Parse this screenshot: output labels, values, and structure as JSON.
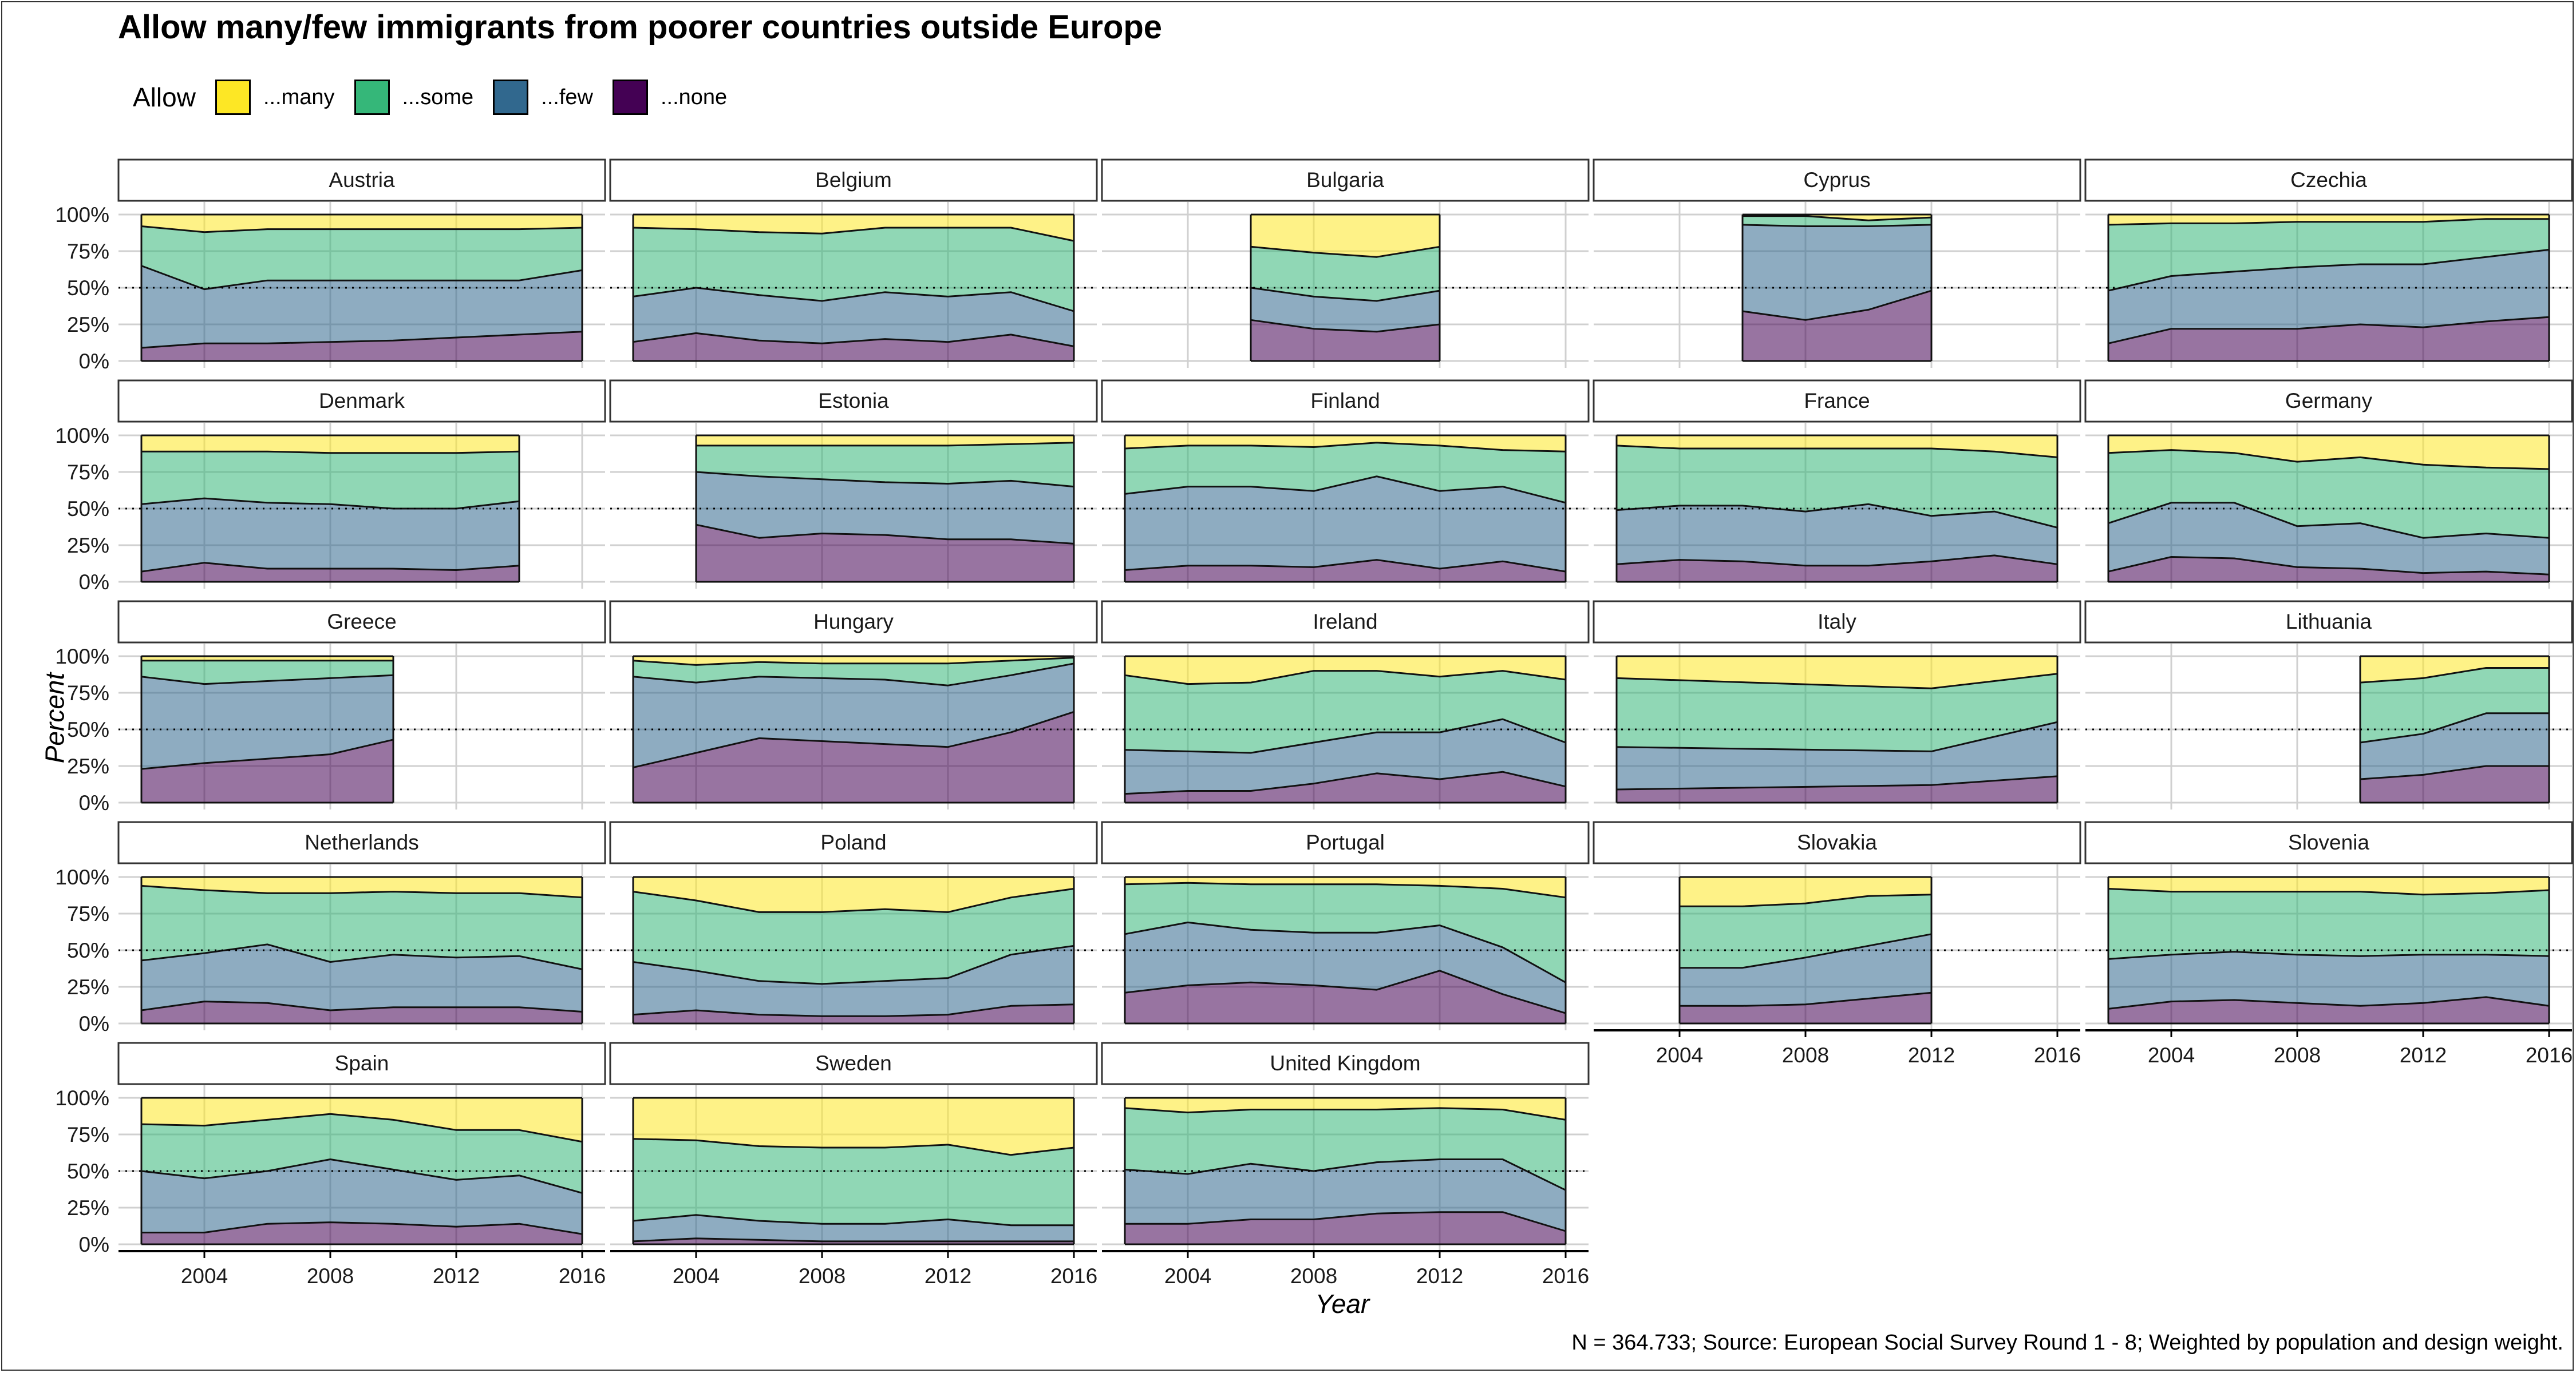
{
  "chart_data": {
    "type": "area",
    "stacked": true,
    "title": "Allow many/few immigrants from poorer countries outside Europe",
    "xlabel": "Year",
    "ylabel": "Percent",
    "xlim": [
      2002,
      2016
    ],
    "ylim": [
      0,
      100
    ],
    "x_ticks": [
      "2004",
      "2008",
      "2012",
      "2016"
    ],
    "y_ticks": [
      "0%",
      "25%",
      "50%",
      "75%",
      "100%"
    ],
    "reference_line": 50,
    "legend_position": "top-left",
    "legend": {
      "title": "Allow",
      "items": [
        {
          "label": "...many",
          "color": "#FDE725"
        },
        {
          "label": "...some",
          "color": "#35B779"
        },
        {
          "label": "...few",
          "color": "#31688E"
        },
        {
          "label": "...none",
          "color": "#440154"
        }
      ]
    },
    "caption": "N = 364.733; Source: European Social Survey Round 1 - 8; Weighted by population and design weight.",
    "panels": [
      {
        "name": "Austria",
        "x": [
          2002,
          2004,
          2006,
          2008,
          2010,
          2012,
          2014,
          2016
        ],
        "none": [
          9,
          12,
          12,
          13,
          14,
          16,
          18,
          20
        ],
        "few": [
          65,
          49,
          55,
          55,
          55,
          55,
          55,
          62
        ],
        "some": [
          92,
          88,
          90,
          90,
          90,
          90,
          90,
          91
        ]
      },
      {
        "name": "Belgium",
        "x": [
          2002,
          2004,
          2006,
          2008,
          2010,
          2012,
          2014,
          2016
        ],
        "none": [
          13,
          19,
          14,
          12,
          15,
          13,
          18,
          10
        ],
        "few": [
          44,
          50,
          45,
          41,
          47,
          44,
          47,
          34
        ],
        "some": [
          91,
          90,
          88,
          87,
          91,
          91,
          91,
          82
        ]
      },
      {
        "name": "Bulgaria",
        "x": [
          2006,
          2008,
          2010,
          2012
        ],
        "none": [
          28,
          22,
          20,
          25
        ],
        "few": [
          50,
          44,
          41,
          48
        ],
        "some": [
          78,
          74,
          71,
          78
        ]
      },
      {
        "name": "Cyprus",
        "x": [
          2006,
          2008,
          2010,
          2012
        ],
        "none": [
          34,
          28,
          35,
          48
        ],
        "few": [
          93,
          92,
          92,
          93
        ],
        "some": [
          99,
          99,
          96,
          98
        ]
      },
      {
        "name": "Czechia",
        "x": [
          2002,
          2004,
          2006,
          2008,
          2010,
          2012,
          2014,
          2016
        ],
        "none": [
          12,
          22,
          22,
          22,
          25,
          23,
          27,
          30
        ],
        "few": [
          48,
          58,
          61,
          64,
          66,
          66,
          71,
          76
        ],
        "some": [
          93,
          94,
          94,
          95,
          95,
          95,
          97,
          97
        ]
      },
      {
        "name": "Denmark",
        "x": [
          2002,
          2004,
          2006,
          2008,
          2010,
          2012,
          2014
        ],
        "none": [
          7,
          13,
          9,
          9,
          9,
          8,
          11
        ],
        "few": [
          53,
          57,
          54,
          53,
          50,
          50,
          55
        ],
        "some": [
          89,
          89,
          89,
          88,
          88,
          88,
          89
        ]
      },
      {
        "name": "Estonia",
        "x": [
          2004,
          2006,
          2008,
          2010,
          2012,
          2014,
          2016
        ],
        "none": [
          39,
          30,
          33,
          32,
          29,
          29,
          26
        ],
        "few": [
          75,
          72,
          70,
          68,
          67,
          69,
          65
        ],
        "some": [
          93,
          93,
          93,
          93,
          93,
          94,
          95
        ]
      },
      {
        "name": "Finland",
        "x": [
          2002,
          2004,
          2006,
          2008,
          2010,
          2012,
          2014,
          2016
        ],
        "none": [
          8,
          11,
          11,
          10,
          15,
          9,
          14,
          7
        ],
        "few": [
          60,
          65,
          65,
          62,
          72,
          62,
          65,
          54
        ],
        "some": [
          91,
          93,
          93,
          92,
          95,
          93,
          90,
          89
        ]
      },
      {
        "name": "France",
        "x": [
          2002,
          2004,
          2006,
          2008,
          2010,
          2012,
          2014,
          2016
        ],
        "none": [
          12,
          15,
          14,
          11,
          11,
          14,
          18,
          12
        ],
        "few": [
          49,
          52,
          52,
          48,
          53,
          45,
          48,
          37
        ],
        "some": [
          93,
          91,
          91,
          91,
          91,
          91,
          89,
          85
        ]
      },
      {
        "name": "Germany",
        "x": [
          2002,
          2004,
          2006,
          2008,
          2010,
          2012,
          2014,
          2016
        ],
        "none": [
          7,
          17,
          16,
          10,
          9,
          6,
          7,
          5
        ],
        "few": [
          40,
          54,
          54,
          38,
          40,
          30,
          33,
          30
        ],
        "some": [
          88,
          90,
          88,
          82,
          85,
          80,
          78,
          77
        ]
      },
      {
        "name": "Greece",
        "x": [
          2002,
          2004,
          2006,
          2008,
          2010
        ],
        "none": [
          23,
          27,
          30,
          33,
          43
        ],
        "few": [
          86,
          81,
          83,
          85,
          87
        ],
        "some": [
          97,
          97,
          97,
          97,
          97
        ]
      },
      {
        "name": "Hungary",
        "x": [
          2002,
          2004,
          2006,
          2008,
          2010,
          2012,
          2014,
          2016
        ],
        "none": [
          24,
          34,
          44,
          42,
          40,
          38,
          48,
          62
        ],
        "few": [
          86,
          82,
          86,
          85,
          84,
          80,
          87,
          95
        ],
        "some": [
          97,
          94,
          96,
          95,
          95,
          95,
          97,
          99
        ]
      },
      {
        "name": "Ireland",
        "x": [
          2002,
          2004,
          2006,
          2008,
          2010,
          2012,
          2014,
          2016
        ],
        "none": [
          6,
          8,
          8,
          13,
          20,
          16,
          21,
          11
        ],
        "few": [
          36,
          35,
          34,
          41,
          48,
          48,
          57,
          41
        ],
        "some": [
          87,
          81,
          82,
          90,
          90,
          86,
          90,
          84
        ]
      },
      {
        "name": "Italy",
        "x": [
          2002,
          2012,
          2016
        ],
        "none": [
          9,
          12,
          18
        ],
        "few": [
          38,
          35,
          55
        ],
        "some": [
          85,
          78,
          88
        ]
      },
      {
        "name": "Lithuania",
        "x": [
          2010,
          2012,
          2014,
          2016
        ],
        "none": [
          16,
          19,
          25,
          25
        ],
        "few": [
          41,
          47,
          61,
          61
        ],
        "some": [
          82,
          85,
          92,
          92
        ]
      },
      {
        "name": "Netherlands",
        "x": [
          2002,
          2004,
          2006,
          2008,
          2010,
          2012,
          2014,
          2016
        ],
        "none": [
          9,
          15,
          14,
          9,
          11,
          11,
          11,
          8
        ],
        "few": [
          43,
          48,
          54,
          42,
          47,
          45,
          46,
          37
        ],
        "some": [
          94,
          91,
          89,
          89,
          90,
          89,
          89,
          86
        ]
      },
      {
        "name": "Poland",
        "x": [
          2002,
          2004,
          2006,
          2008,
          2010,
          2012,
          2014,
          2016
        ],
        "none": [
          6,
          9,
          6,
          5,
          5,
          6,
          12,
          13
        ],
        "few": [
          42,
          36,
          29,
          27,
          29,
          31,
          47,
          53
        ],
        "some": [
          90,
          84,
          76,
          76,
          78,
          76,
          86,
          92
        ]
      },
      {
        "name": "Portugal",
        "x": [
          2002,
          2004,
          2006,
          2008,
          2010,
          2012,
          2014,
          2016
        ],
        "none": [
          21,
          26,
          28,
          26,
          23,
          36,
          20,
          7
        ],
        "few": [
          61,
          69,
          64,
          62,
          62,
          67,
          52,
          28
        ],
        "some": [
          95,
          96,
          95,
          95,
          95,
          94,
          92,
          86
        ]
      },
      {
        "name": "Slovakia",
        "x": [
          2004,
          2006,
          2008,
          2010,
          2012
        ],
        "none": [
          12,
          12,
          13,
          17,
          21
        ],
        "few": [
          38,
          38,
          45,
          53,
          61
        ],
        "some": [
          80,
          80,
          82,
          87,
          88
        ]
      },
      {
        "name": "Slovenia",
        "x": [
          2002,
          2004,
          2006,
          2008,
          2010,
          2012,
          2014,
          2016
        ],
        "none": [
          10,
          15,
          16,
          14,
          12,
          14,
          18,
          12
        ],
        "few": [
          44,
          47,
          49,
          47,
          46,
          47,
          47,
          46
        ],
        "some": [
          92,
          90,
          90,
          90,
          90,
          88,
          89,
          91
        ]
      },
      {
        "name": "Spain",
        "x": [
          2002,
          2004,
          2006,
          2008,
          2010,
          2012,
          2014,
          2016
        ],
        "none": [
          8,
          8,
          14,
          15,
          14,
          12,
          14,
          7
        ],
        "few": [
          50,
          45,
          50,
          58,
          51,
          44,
          47,
          35
        ],
        "some": [
          82,
          81,
          85,
          89,
          85,
          78,
          78,
          70
        ]
      },
      {
        "name": "Sweden",
        "x": [
          2002,
          2004,
          2006,
          2008,
          2010,
          2012,
          2014,
          2016
        ],
        "none": [
          2,
          4,
          3,
          2,
          2,
          2,
          2,
          2
        ],
        "few": [
          16,
          20,
          16,
          14,
          14,
          17,
          13,
          13
        ],
        "some": [
          72,
          71,
          67,
          66,
          66,
          68,
          61,
          66
        ]
      },
      {
        "name": "United Kingdom",
        "x": [
          2002,
          2004,
          2006,
          2008,
          2010,
          2012,
          2014,
          2016
        ],
        "none": [
          14,
          14,
          17,
          17,
          21,
          22,
          22,
          9
        ],
        "few": [
          51,
          48,
          55,
          50,
          56,
          58,
          58,
          37
        ],
        "some": [
          93,
          90,
          92,
          92,
          92,
          93,
          92,
          85
        ]
      }
    ]
  }
}
